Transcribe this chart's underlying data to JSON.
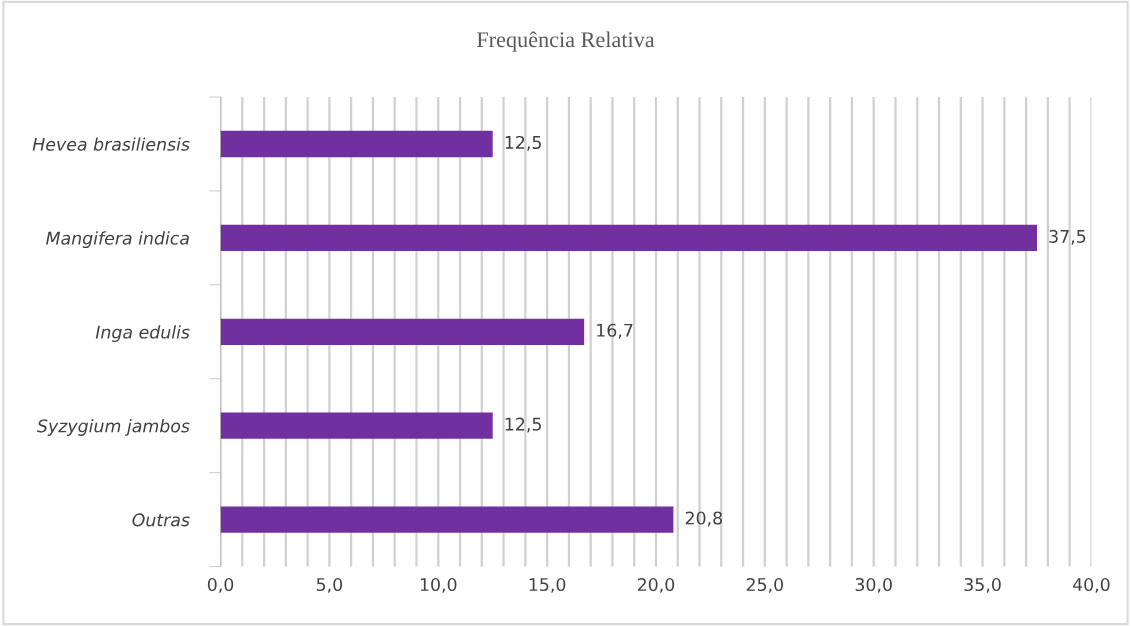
{
  "chart_data": {
    "type": "bar",
    "orientation": "horizontal",
    "title": "Frequência Relativa",
    "categories": [
      "Hevea brasiliensis",
      "Mangifera indica",
      "Inga edulis",
      "Syzygium jambos",
      "Outras"
    ],
    "values": [
      12.5,
      37.5,
      16.7,
      12.5,
      20.8
    ],
    "value_labels": [
      "12,5",
      "37,5",
      "16,7",
      "12,5",
      "20,8"
    ],
    "color": "#7030a0",
    "xlim": [
      0,
      40
    ],
    "xticks": [
      {
        "value": 0,
        "label": "0,0"
      },
      {
        "value": 1,
        "label": null
      },
      {
        "value": 2,
        "label": null
      },
      {
        "value": 3,
        "label": null
      },
      {
        "value": 4,
        "label": null
      },
      {
        "value": 5,
        "label": "5,0"
      },
      {
        "value": 6,
        "label": null
      },
      {
        "value": 7,
        "label": null
      },
      {
        "value": 8,
        "label": null
      },
      {
        "value": 9,
        "label": null
      },
      {
        "value": 10,
        "label": "10,0"
      },
      {
        "value": 11,
        "label": null
      },
      {
        "value": 12,
        "label": null
      },
      {
        "value": 13,
        "label": null
      },
      {
        "value": 14,
        "label": null
      },
      {
        "value": 15,
        "label": "15,0"
      },
      {
        "value": 16,
        "label": null
      },
      {
        "value": 17,
        "label": null
      },
      {
        "value": 18,
        "label": null
      },
      {
        "value": 19,
        "label": null
      },
      {
        "value": 20,
        "label": "20,0"
      },
      {
        "value": 21,
        "label": null
      },
      {
        "value": 22,
        "label": null
      },
      {
        "value": 23,
        "label": null
      },
      {
        "value": 24,
        "label": null
      },
      {
        "value": 25,
        "label": "25,0"
      },
      {
        "value": 26,
        "label": null
      },
      {
        "value": 27,
        "label": null
      },
      {
        "value": 28,
        "label": null
      },
      {
        "value": 29,
        "label": null
      },
      {
        "value": 30,
        "label": "30,0"
      },
      {
        "value": 31,
        "label": null
      },
      {
        "value": 32,
        "label": null
      },
      {
        "value": 33,
        "label": null
      },
      {
        "value": 34,
        "label": null
      },
      {
        "value": 35,
        "label": "35,0"
      },
      {
        "value": 36,
        "label": null
      },
      {
        "value": 37,
        "label": null
      },
      {
        "value": 38,
        "label": null
      },
      {
        "value": 39,
        "label": null
      },
      {
        "value": 40,
        "label": "40,0"
      }
    ],
    "grid": "x",
    "legend": false
  }
}
